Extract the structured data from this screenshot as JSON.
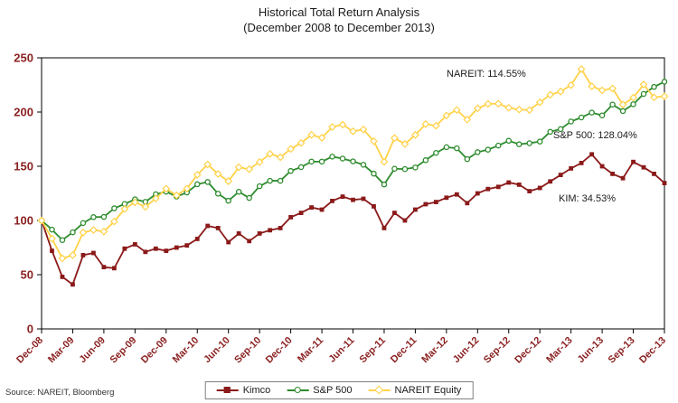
{
  "title": {
    "line1": "Historical Total Return Analysis",
    "line2": "(December 2008 to December 2013)"
  },
  "source": "Source: NAREIT, Bloomberg",
  "chart_data": {
    "type": "line",
    "title": "Historical Total Return Analysis",
    "subtitle": "(December 2008 to December 2013)",
    "ylim": [
      0,
      250
    ],
    "y_ticks": [
      0,
      50,
      100,
      150,
      200,
      250
    ],
    "grid": false,
    "legend_position": "bottom",
    "axis_label_color": "#8B2222",
    "x_tick_every": 3,
    "x_ticks": [
      "Dec-08",
      "Mar-09",
      "Jun-09",
      "Sep-09",
      "Dec-09",
      "Mar-10",
      "Jun-10",
      "Sep-10",
      "Dec-10",
      "Mar-11",
      "Jun-11",
      "Sep-11",
      "Dec-11",
      "Mar-12",
      "Jun-12",
      "Sep-12",
      "Dec-12",
      "Mar-13",
      "Jun-13",
      "Sep-13",
      "Dec-13"
    ],
    "annotations": [
      {
        "text": "NAREIT: 114.55%",
        "near": "NAREIT Equity line"
      },
      {
        "text": "S&P 500: 128.04%",
        "near": "S&P 500 line"
      },
      {
        "text": "KIM: 34.53%",
        "near": "Kimco line"
      }
    ],
    "series": [
      {
        "name": "Kimco",
        "color": "#8B1A1A",
        "marker": "square",
        "values": [
          100,
          72,
          48,
          41,
          68,
          70,
          57,
          56,
          74,
          78,
          71,
          74,
          72,
          75,
          77,
          83,
          95,
          93,
          80,
          88,
          81,
          88,
          91,
          93,
          103,
          107,
          112,
          110,
          118,
          122,
          119,
          120,
          113,
          93,
          107,
          100,
          110,
          115,
          117,
          121,
          124,
          116,
          125,
          129,
          131,
          135,
          133,
          127,
          130,
          136,
          142,
          148,
          153,
          161,
          150,
          143,
          139,
          154,
          149,
          143,
          134.5
        ]
      },
      {
        "name": "S&P 500",
        "color": "#2E8B2E",
        "marker": "circle",
        "values": [
          100,
          91.6,
          81.9,
          89.1,
          97.6,
          103.1,
          103.3,
          111.2,
          115.2,
          119.5,
          117.2,
          124.2,
          126.6,
          122,
          125.8,
          133.4,
          135.5,
          124.7,
          118.2,
          126.5,
          120.8,
          131.6,
          136.6,
          136.6,
          145.7,
          149.2,
          154.3,
          154.3,
          158.9,
          157.1,
          154.5,
          151.4,
          143.2,
          133.2,
          147.7,
          147.4,
          148.9,
          155.6,
          162.3,
          167.6,
          166.6,
          156.6,
          163,
          165.3,
          169.1,
          173.5,
          170.3,
          171.3,
          172.8,
          181.8,
          184.3,
          191.3,
          195,
          199.5,
          196.9,
          206.9,
          200.9,
          207.2,
          216.7,
          223.2,
          228
        ]
      },
      {
        "name": "NAREIT Equity",
        "color": "#FFD24A",
        "marker": "diamond",
        "values": [
          100,
          83.2,
          65.1,
          68,
          88.9,
          91.2,
          89.8,
          99.1,
          110.6,
          116.8,
          112.6,
          120.3,
          129.3,
          123.1,
          129.4,
          142.2,
          151.7,
          142.9,
          136.2,
          149.1,
          147.3,
          153.9,
          161.4,
          158.3,
          165.9,
          171.5,
          179,
          176.3,
          186.2,
          188.4,
          182.2,
          184,
          173.1,
          154.1,
          176,
          170.5,
          178.9,
          188.9,
          187.4,
          196.8,
          201.9,
          193,
          203.4,
          207.5,
          207.7,
          204,
          202.3,
          201.9,
          209,
          215.9,
          218.9,
          224.8,
          239.6,
          223.8,
          220,
          221.8,
          206.9,
          213.3,
          225.4,
          213.5,
          214.6
        ]
      }
    ]
  }
}
